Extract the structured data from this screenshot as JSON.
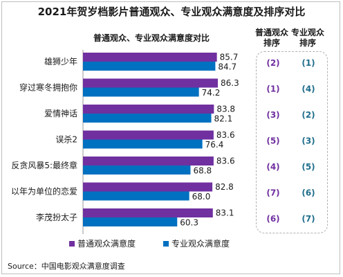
{
  "title": "2021年贺岁档影片普通观众、专业观众满意度及排序对比",
  "subtitle": "普通观众、专业观众满意度对比",
  "rank_headers": {
    "general_line1": "普通观众",
    "general_line2": "排序",
    "professional_line1": "专业观众",
    "professional_line2": "排序"
  },
  "source": "Source：中国电影观众满意度调查",
  "colors": {
    "general": "#7030a0",
    "professional": "#0070c0",
    "rank_general": "#7030a0",
    "rank_professional": "#1f6e8c"
  },
  "chart_data": {
    "type": "bar",
    "orientation": "horizontal",
    "title": "普通观众、专业观众满意度对比",
    "categories": [
      "雄狮少年",
      "穿过寒冬拥抱你",
      "爱情神话",
      "误杀2",
      "反贪风暴5:最终章",
      "以年为单位的恋爱",
      "李茂扮太子"
    ],
    "series": [
      {
        "name": "普通观众满意度",
        "values": [
          85.7,
          86.3,
          83.8,
          83.6,
          83.6,
          82.8,
          83.1
        ]
      },
      {
        "name": "专业观众满意度",
        "values": [
          84.7,
          74.2,
          82.1,
          76.4,
          68.8,
          68.0,
          60.3
        ]
      }
    ],
    "ranks": {
      "general": [
        "(2)",
        "(1)",
        "(3)",
        "(5)",
        "(4)",
        "(7)",
        "(6)"
      ],
      "professional": [
        "(1)",
        "(4)",
        "(2)",
        "(3)",
        "(5)",
        "(6)",
        "(7)"
      ]
    },
    "legend_position": "bottom",
    "grid": false
  }
}
